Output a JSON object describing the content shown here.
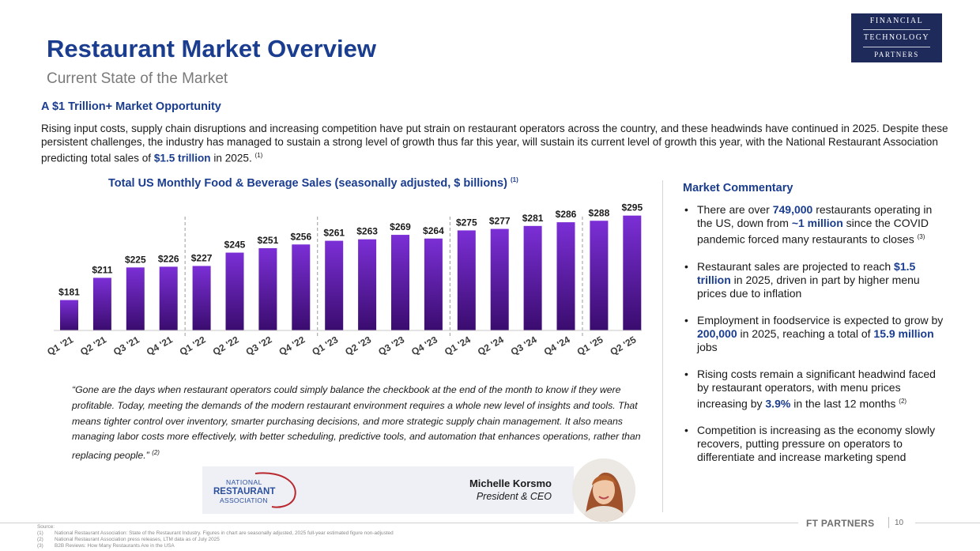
{
  "header": {
    "title": "Restaurant Market Overview",
    "subtitle": "Current State of the Market",
    "logo_lines": [
      "FINANCIAL",
      "TECHNOLOGY",
      "PARTNERS"
    ]
  },
  "intro": {
    "heading": "A $1 Trillion+ Market Opportunity",
    "text_before": "Rising input costs, supply chain disruptions and increasing competition have put strain on restaurant operators across the country, and these headwinds have continued in 2025. Despite these persistent challenges, the industry has managed to sustain a strong level of growth thus far this year, will sustain its current level of growth this year, with the National Restaurant Association predicting total sales of ",
    "highlight": "$1.5 trillion",
    "text_after": " in 2025. ",
    "footnote": "(1)"
  },
  "chart_data": {
    "type": "bar",
    "title": "Total US Monthly Food & Beverage Sales (seasonally adjusted, $ billions)",
    "title_footnote": "(1)",
    "categories": [
      "Q1 '21",
      "Q2 '21",
      "Q3 '21",
      "Q4 '21",
      "Q1 '22",
      "Q2 '22",
      "Q3 '22",
      "Q4 '22",
      "Q1 '23",
      "Q2 '23",
      "Q3 '23",
      "Q4 '23",
      "Q1 '24",
      "Q2 '24",
      "Q3 '24",
      "Q4 '24",
      "Q1 '25",
      "Q2 '25"
    ],
    "values": [
      181,
      211,
      225,
      226,
      227,
      245,
      251,
      256,
      261,
      263,
      269,
      264,
      275,
      277,
      281,
      286,
      288,
      295
    ],
    "data_labels": [
      "$181",
      "$211",
      "$225",
      "$226",
      "$227",
      "$245",
      "$251",
      "$256",
      "$261",
      "$263",
      "$269",
      "$264",
      "$275",
      "$277",
      "$281",
      "$286",
      "$288",
      "$295"
    ],
    "year_dividers_after": [
      "Q4 '21",
      "Q4 '22",
      "Q4 '23",
      "Q4 '24"
    ],
    "colors": {
      "bar_top": "#7b2fd6",
      "bar_bottom": "#3a0c6e"
    },
    "xlabel": "",
    "ylabel": "",
    "ylim": [
      140,
      300
    ]
  },
  "commentary": {
    "heading": "Market Commentary",
    "bullets": [
      {
        "t1": "There are over ",
        "h1": "749,000",
        "t2": " restaurants operating in the US, down from ",
        "h2": "~1 million",
        "t3": " since the COVID pandemic forced many restaurants to closes ",
        "sup": "(3)"
      },
      {
        "t1": "Restaurant sales are projected to reach ",
        "h1": "$1.5 trillion",
        "t2": " in 2025, driven in part by higher menu prices due to inflation",
        "h2": "",
        "t3": "",
        "sup": ""
      },
      {
        "t1": "Employment in foodservice is expected to grow by ",
        "h1": "200,000",
        "t2": " in 2025, reaching a total of ",
        "h2": "15.9 million",
        "t3": " jobs",
        "sup": ""
      },
      {
        "t1": "Rising costs remain a significant headwind faced by restaurant operators, with menu prices increasing by ",
        "h1": "3.9%",
        "t2": " in the last 12 months ",
        "h2": "",
        "t3": "",
        "sup": "(2)"
      },
      {
        "t1": "Competition is increasing as the economy slowly recovers, putting pressure on operators to differentiate and increase marketing spend",
        "h1": "",
        "t2": "",
        "h2": "",
        "t3": "",
        "sup": ""
      }
    ]
  },
  "quote": {
    "text": "“Gone are the days when restaurant operators could simply balance the checkbook at the end of the month to know if they were profitable. Today, meeting the demands of the modern restaurant environment requires a whole new level of insights and tools. That means tighter control over inventory, smarter purchasing decisions, and more strategic supply chain management. It also means managing labor costs more effectively, with better scheduling, predictive tools, and automation that enhances operations, rather than replacing people.” ",
    "footnote": "(2)",
    "speaker_name": "Michelle Korsmo",
    "speaker_title": "President & CEO",
    "org_logo_lines": [
      "NATIONAL",
      "RESTAURANT",
      "ASSOCIATION"
    ]
  },
  "footer": {
    "brand": "FT PARTNERS",
    "page_number": "10",
    "sources_label": "Source:",
    "sources": [
      {
        "n": "(1)",
        "text": "National Restaurant Association: State of the Restaurant Industry. Figures in chart are seasonally adjusted, 2025 full-year estimated figure non-adjusted"
      },
      {
        "n": "(2)",
        "text": "National Restaurant Association press releases, LTM data as of July 2025"
      },
      {
        "n": "(3)",
        "text": "B2B Reviews: How Many Restaurants Are in the USA"
      }
    ]
  }
}
